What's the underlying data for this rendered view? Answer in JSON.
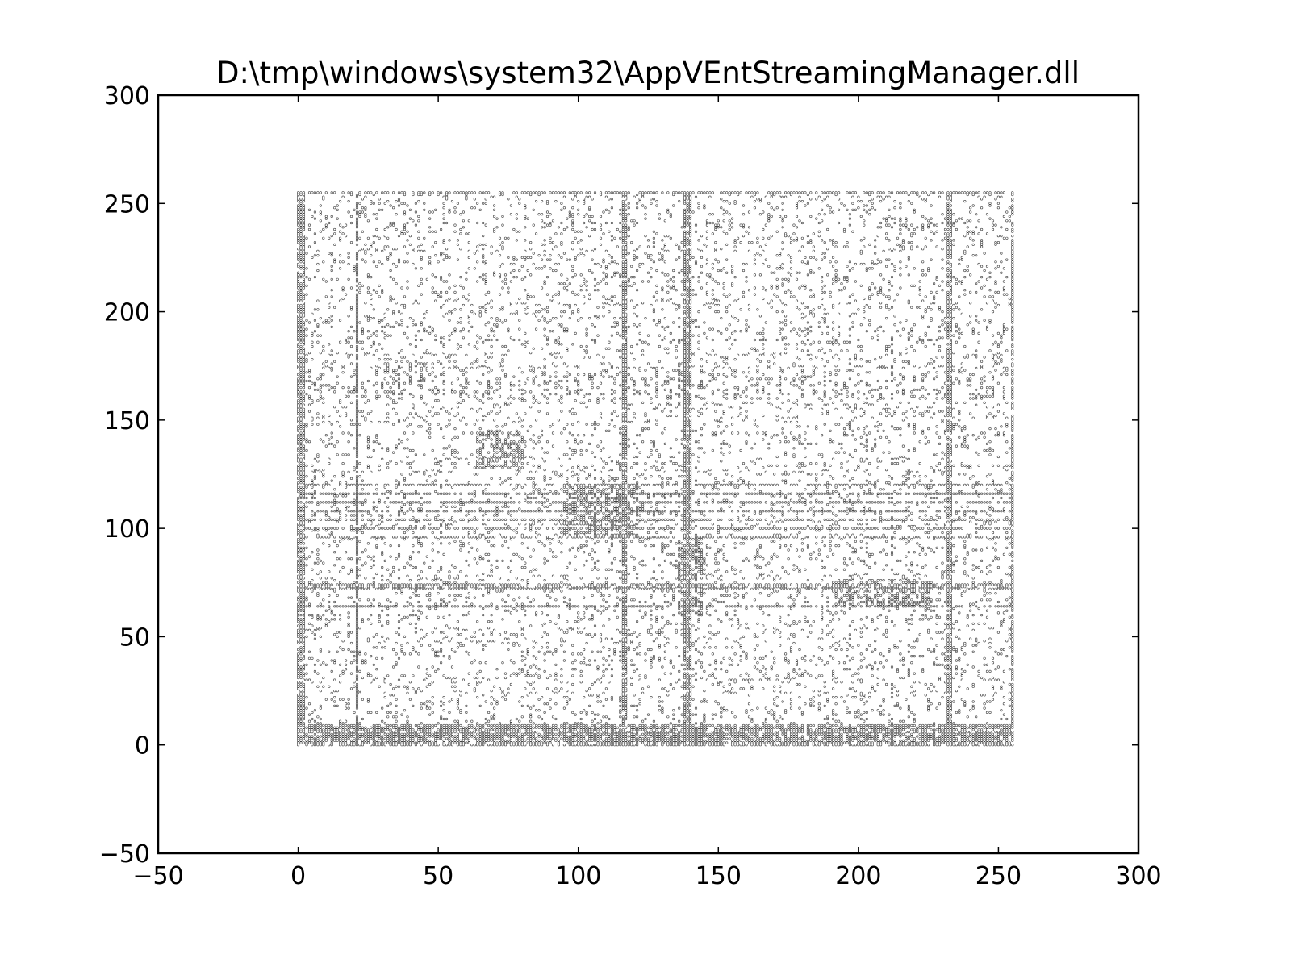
{
  "chart_data": {
    "type": "scatter",
    "title": "D:\\tmp\\windows\\system32\\AppVEntStreamingManager.dll",
    "xlabel": "",
    "ylabel": "",
    "xlim": [
      -50,
      300
    ],
    "ylim": [
      -50,
      300
    ],
    "xticks": [
      -50,
      0,
      50,
      100,
      150,
      200,
      250,
      300
    ],
    "yticks": [
      -50,
      0,
      50,
      100,
      150,
      200,
      250,
      300
    ],
    "xtick_labels": [
      "−50",
      "0",
      "50",
      "100",
      "150",
      "200",
      "250",
      "300"
    ],
    "ytick_labels": [
      "−50",
      "0",
      "50",
      "100",
      "150",
      "200",
      "250",
      "300"
    ],
    "grid": false,
    "legend": "none",
    "marker_color": "#000000",
    "point_domain": {
      "x": [
        0,
        255
      ],
      "y": [
        0,
        255
      ]
    },
    "dense_columns_x": [
      0,
      1,
      2,
      21,
      116,
      117,
      138,
      139,
      140,
      232,
      233,
      255
    ],
    "dense_rows_y": [
      0,
      1,
      2,
      3,
      4,
      5,
      6,
      7,
      8,
      64,
      72,
      73,
      74,
      96,
      100,
      104,
      108,
      112,
      116,
      120,
      255
    ],
    "dense_blocks": [
      {
        "x": [
          94,
          122
        ],
        "y": [
          96,
          120
        ]
      },
      {
        "x": [
          64,
          80
        ],
        "y": [
          128,
          144
        ]
      },
      {
        "x": [
          136,
          144
        ],
        "y": [
          60,
          96
        ]
      },
      {
        "x": [
          192,
          226
        ],
        "y": [
          64,
          76
        ]
      }
    ]
  }
}
